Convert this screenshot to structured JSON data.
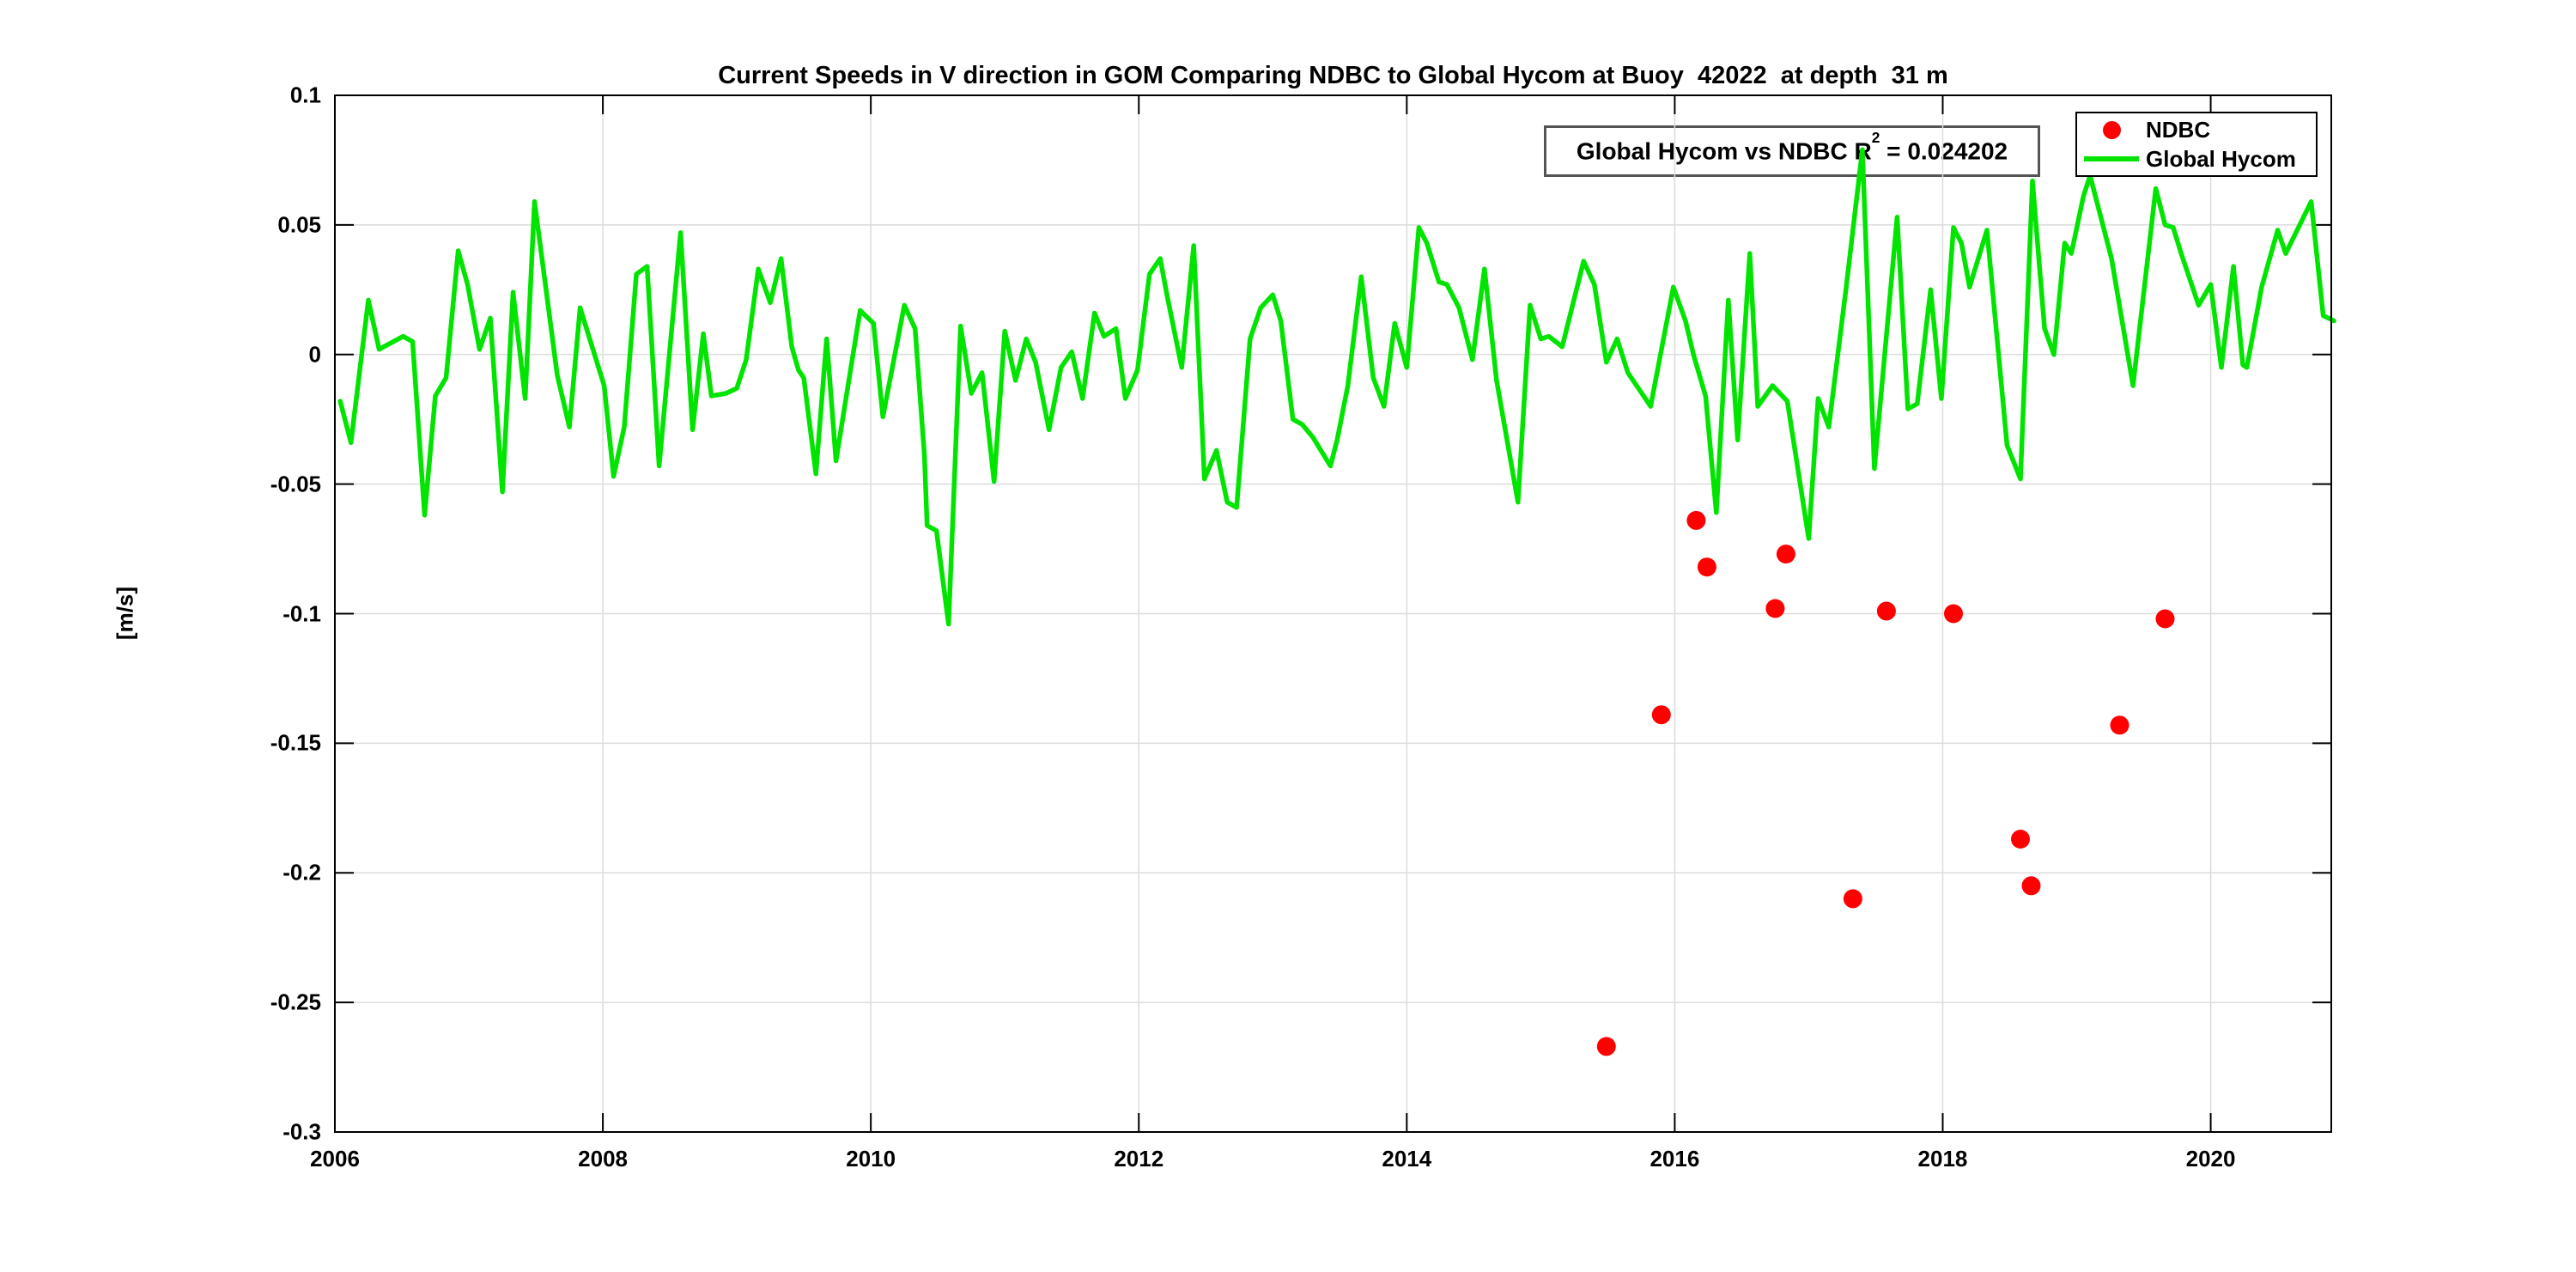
{
  "chart_data": {
    "type": "line+scatter",
    "title": "Current Speeds in V direction in GOM Comparing NDBC to Global Hycom at Buoy  42022  at depth  31 m",
    "xlabel": "",
    "ylabel": "[m/s]",
    "xlim": [
      2006,
      2020.9
    ],
    "ylim": [
      -0.3,
      0.1
    ],
    "x_ticks": [
      2006,
      2008,
      2010,
      2012,
      2014,
      2016,
      2018,
      2020
    ],
    "y_ticks": [
      0.1,
      0.05,
      0,
      -0.05,
      -0.1,
      -0.15,
      -0.2,
      -0.25,
      -0.3
    ],
    "grid": true,
    "legend_position": "top-right-inside",
    "colors": {
      "ndbc": "#ff0000",
      "global_hycom": "#00e400",
      "grid": "#dcdcdc",
      "axis": "#000000",
      "annotation_border": "#555555"
    },
    "annotation": {
      "prefix": "Global Hycom vs NDBC R",
      "sup": "2",
      "suffix": " = 0.024202"
    },
    "legend": {
      "items": [
        {
          "label": "NDBC",
          "marker": "dot",
          "color": "#ff0000"
        },
        {
          "label": "Global Hycom",
          "marker": "line",
          "color": "#00e400"
        }
      ]
    },
    "series": [
      {
        "name": "NDBC",
        "type": "scatter",
        "color": "#ff0000",
        "marker_radius": 11,
        "points": [
          [
            2015.49,
            -0.267
          ],
          [
            2015.9,
            -0.139
          ],
          [
            2016.16,
            -0.064
          ],
          [
            2016.24,
            -0.082
          ],
          [
            2016.75,
            -0.098
          ],
          [
            2016.83,
            -0.077
          ],
          [
            2017.33,
            -0.21
          ],
          [
            2017.58,
            -0.099
          ],
          [
            2018.08,
            -0.1
          ],
          [
            2018.58,
            -0.187
          ],
          [
            2018.66,
            -0.205
          ],
          [
            2019.32,
            -0.143
          ],
          [
            2019.66,
            -0.102
          ]
        ]
      },
      {
        "name": "Global Hycom",
        "type": "line",
        "color": "#00e400",
        "line_width": 5.5,
        "points": [
          [
            2006.04,
            -0.018
          ],
          [
            2006.12,
            -0.034
          ],
          [
            2006.25,
            0.021
          ],
          [
            2006.33,
            0.002
          ],
          [
            2006.51,
            0.007
          ],
          [
            2006.58,
            0.005
          ],
          [
            2006.67,
            -0.062
          ],
          [
            2006.75,
            -0.016
          ],
          [
            2006.83,
            -0.009
          ],
          [
            2006.92,
            0.04
          ],
          [
            2006.99,
            0.027
          ],
          [
            2007.08,
            0.002
          ],
          [
            2007.16,
            0.014
          ],
          [
            2007.25,
            -0.053
          ],
          [
            2007.33,
            0.024
          ],
          [
            2007.42,
            -0.017
          ],
          [
            2007.49,
            0.059
          ],
          [
            2007.66,
            -0.008
          ],
          [
            2007.75,
            -0.028
          ],
          [
            2007.83,
            0.018
          ],
          [
            2008.01,
            -0.012
          ],
          [
            2008.08,
            -0.047
          ],
          [
            2008.16,
            -0.028
          ],
          [
            2008.25,
            0.031
          ],
          [
            2008.33,
            0.034
          ],
          [
            2008.42,
            -0.043
          ],
          [
            2008.58,
            0.047
          ],
          [
            2008.67,
            -0.029
          ],
          [
            2008.75,
            0.008
          ],
          [
            2008.81,
            -0.016
          ],
          [
            2008.92,
            -0.015
          ],
          [
            2009.0,
            -0.013
          ],
          [
            2009.07,
            -0.002
          ],
          [
            2009.16,
            0.033
          ],
          [
            2009.25,
            0.02
          ],
          [
            2009.33,
            0.037
          ],
          [
            2009.41,
            0.003
          ],
          [
            2009.46,
            -0.006
          ],
          [
            2009.5,
            -0.009
          ],
          [
            2009.59,
            -0.046
          ],
          [
            2009.67,
            0.006
          ],
          [
            2009.74,
            -0.041
          ],
          [
            2009.83,
            -0.012
          ],
          [
            2009.92,
            0.017
          ],
          [
            2010.02,
            0.012
          ],
          [
            2010.09,
            -0.024
          ],
          [
            2010.25,
            0.019
          ],
          [
            2010.33,
            0.01
          ],
          [
            2010.4,
            -0.039
          ],
          [
            2010.42,
            -0.066
          ],
          [
            2010.49,
            -0.068
          ],
          [
            2010.58,
            -0.104
          ],
          [
            2010.67,
            0.011
          ],
          [
            2010.75,
            -0.015
          ],
          [
            2010.83,
            -0.007
          ],
          [
            2010.92,
            -0.049
          ],
          [
            2011.0,
            0.009
          ],
          [
            2011.08,
            -0.01
          ],
          [
            2011.16,
            0.006
          ],
          [
            2011.23,
            -0.003
          ],
          [
            2011.33,
            -0.029
          ],
          [
            2011.42,
            -0.005
          ],
          [
            2011.5,
            0.001
          ],
          [
            2011.58,
            -0.017
          ],
          [
            2011.67,
            0.016
          ],
          [
            2011.74,
            0.007
          ],
          [
            2011.83,
            0.01
          ],
          [
            2011.9,
            -0.017
          ],
          [
            2011.99,
            -0.006
          ],
          [
            2012.08,
            0.031
          ],
          [
            2012.16,
            0.037
          ],
          [
            2012.21,
            0.023
          ],
          [
            2012.32,
            -0.005
          ],
          [
            2012.41,
            0.042
          ],
          [
            2012.49,
            -0.048
          ],
          [
            2012.58,
            -0.037
          ],
          [
            2012.66,
            -0.057
          ],
          [
            2012.73,
            -0.059
          ],
          [
            2012.83,
            0.006
          ],
          [
            2012.91,
            0.018
          ],
          [
            2013.0,
            0.023
          ],
          [
            2013.06,
            0.013
          ],
          [
            2013.15,
            -0.025
          ],
          [
            2013.22,
            -0.027
          ],
          [
            2013.3,
            -0.032
          ],
          [
            2013.43,
            -0.043
          ],
          [
            2013.48,
            -0.033
          ],
          [
            2013.56,
            -0.012
          ],
          [
            2013.66,
            0.03
          ],
          [
            2013.75,
            -0.009
          ],
          [
            2013.83,
            -0.02
          ],
          [
            2013.91,
            0.012
          ],
          [
            2014.0,
            -0.005
          ],
          [
            2014.09,
            0.049
          ],
          [
            2014.15,
            0.043
          ],
          [
            2014.24,
            0.028
          ],
          [
            2014.3,
            0.027
          ],
          [
            2014.39,
            0.018
          ],
          [
            2014.49,
            -0.002
          ],
          [
            2014.58,
            0.033
          ],
          [
            2014.67,
            -0.01
          ],
          [
            2014.83,
            -0.057
          ],
          [
            2014.92,
            0.019
          ],
          [
            2015.0,
            0.006
          ],
          [
            2015.06,
            0.007
          ],
          [
            2015.16,
            0.003
          ],
          [
            2015.32,
            0.036
          ],
          [
            2015.4,
            0.027
          ],
          [
            2015.49,
            -0.003
          ],
          [
            2015.57,
            0.006
          ],
          [
            2015.65,
            -0.007
          ],
          [
            2015.82,
            -0.02
          ],
          [
            2015.99,
            0.026
          ],
          [
            2016.08,
            0.013
          ],
          [
            2016.14,
            0.0
          ],
          [
            2016.23,
            -0.016
          ],
          [
            2016.31,
            -0.061
          ],
          [
            2016.4,
            0.021
          ],
          [
            2016.47,
            -0.033
          ],
          [
            2016.56,
            0.039
          ],
          [
            2016.62,
            -0.02
          ],
          [
            2016.73,
            -0.012
          ],
          [
            2016.84,
            -0.018
          ],
          [
            2017.0,
            -0.071
          ],
          [
            2017.07,
            -0.017
          ],
          [
            2017.15,
            -0.028
          ],
          [
            2017.28,
            0.026
          ],
          [
            2017.4,
            0.079
          ],
          [
            2017.49,
            -0.044
          ],
          [
            2017.66,
            0.053
          ],
          [
            2017.74,
            -0.021
          ],
          [
            2017.81,
            -0.019
          ],
          [
            2017.91,
            0.025
          ],
          [
            2017.99,
            -0.017
          ],
          [
            2018.08,
            0.049
          ],
          [
            2018.14,
            0.043
          ],
          [
            2018.2,
            0.026
          ],
          [
            2018.33,
            0.048
          ],
          [
            2018.48,
            -0.035
          ],
          [
            2018.58,
            -0.048
          ],
          [
            2018.67,
            0.067
          ],
          [
            2018.76,
            0.01
          ],
          [
            2018.83,
            0.0
          ],
          [
            2018.91,
            0.043
          ],
          [
            2018.96,
            0.039
          ],
          [
            2019.05,
            0.061
          ],
          [
            2019.1,
            0.069
          ],
          [
            2019.26,
            0.037
          ],
          [
            2019.42,
            -0.012
          ],
          [
            2019.59,
            0.064
          ],
          [
            2019.66,
            0.05
          ],
          [
            2019.72,
            0.049
          ],
          [
            2019.78,
            0.039
          ],
          [
            2019.91,
            0.019
          ],
          [
            2020.0,
            0.027
          ],
          [
            2020.08,
            -0.005
          ],
          [
            2020.17,
            0.034
          ],
          [
            2020.24,
            -0.004
          ],
          [
            2020.27,
            -0.005
          ],
          [
            2020.38,
            0.026
          ],
          [
            2020.5,
            0.048
          ],
          [
            2020.56,
            0.039
          ],
          [
            2020.75,
            0.059
          ],
          [
            2020.84,
            0.015
          ],
          [
            2020.92,
            0.013
          ]
        ]
      }
    ]
  }
}
